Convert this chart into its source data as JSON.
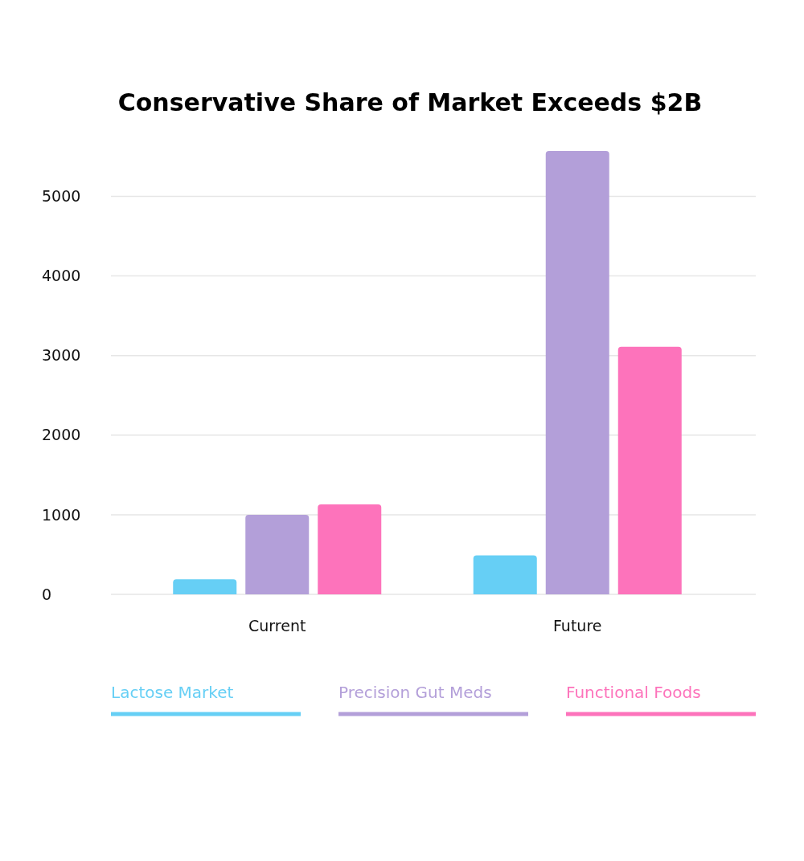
{
  "chart_data": {
    "type": "bar",
    "title": "Conservative Share of Market Exceeds $2B",
    "categories": [
      "Current",
      "Future"
    ],
    "series": [
      {
        "name": "Lactose Market",
        "color": "#66cff5",
        "values": [
          190,
          490
        ]
      },
      {
        "name": "Precision Gut Meds",
        "color": "#b39fd9",
        "values": [
          1000,
          5570
        ]
      },
      {
        "name": "Functional Foods",
        "color": "#fd73bb",
        "values": [
          1130,
          3110
        ]
      }
    ],
    "ylim": [
      0,
      5600
    ],
    "yticks": [
      0,
      1000,
      2000,
      3000,
      4000,
      5000
    ],
    "grid": "y",
    "legend": "bottom"
  }
}
